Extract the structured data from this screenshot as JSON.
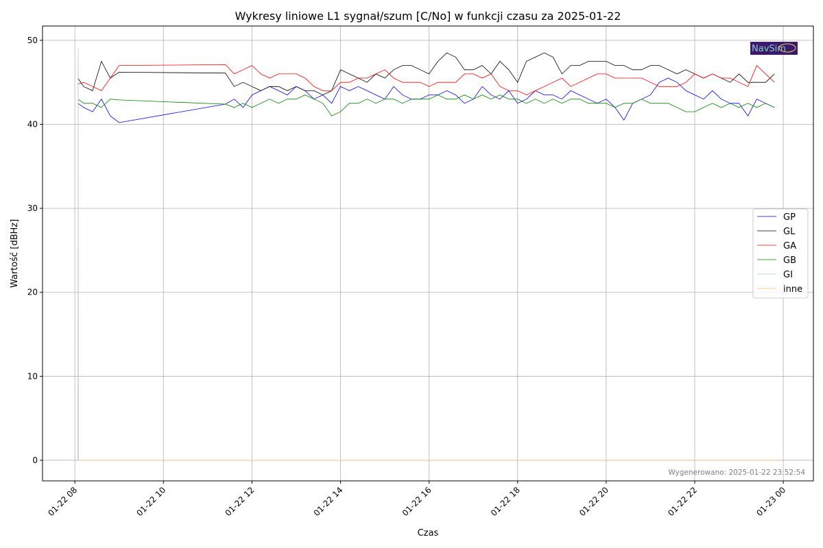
{
  "chart_data": {
    "type": "line",
    "title": "Wykresy liniowe L1 sygnał/szum [C/No] w funkcji czasu za 2025-01-22",
    "xlabel": "Czas",
    "ylabel": "Wartość [dBHz]",
    "x_unit": "hours since 2025-01-22 00:00",
    "xlim": [
      7.27,
      24.68
    ],
    "ylim": [
      -2.45,
      51.7
    ],
    "grid": true,
    "legend_placement": "center-right",
    "x_ticks": [
      8,
      10,
      12,
      14,
      16,
      18,
      20,
      22,
      24
    ],
    "x_tick_labels": [
      "01-22 08",
      "01-22 10",
      "01-22 12",
      "01-22 14",
      "01-22 16",
      "01-22 18",
      "01-22 20",
      "01-22 22",
      "01-23 00"
    ],
    "y_ticks": [
      0,
      10,
      20,
      30,
      40,
      50
    ],
    "y_tick_labels": [
      "0",
      "10",
      "20",
      "30",
      "40",
      "50"
    ],
    "x": [
      8.07,
      8.2,
      8.4,
      8.6,
      8.8,
      9.0,
      11.4,
      11.6,
      11.8,
      12.0,
      12.2,
      12.4,
      12.6,
      12.8,
      13.0,
      13.2,
      13.4,
      13.6,
      13.8,
      14.0,
      14.2,
      14.4,
      14.6,
      14.8,
      15.0,
      15.2,
      15.4,
      15.6,
      15.8,
      16.0,
      16.2,
      16.4,
      16.6,
      16.8,
      17.0,
      17.2,
      17.4,
      17.6,
      17.8,
      18.0,
      18.2,
      18.4,
      18.6,
      18.8,
      19.0,
      19.2,
      19.4,
      19.6,
      19.8,
      20.0,
      20.2,
      20.4,
      20.6,
      20.8,
      21.0,
      21.2,
      21.4,
      21.6,
      21.8,
      22.0,
      22.2,
      22.4,
      22.6,
      22.8,
      23.0,
      23.2,
      23.4,
      23.6,
      23.8
    ],
    "series": [
      {
        "name": "GP",
        "color": "#0000ff",
        "values": [
          42.5,
          42,
          41.5,
          43,
          41,
          40.2,
          42.4,
          43,
          42,
          43.5,
          44,
          44.5,
          44,
          43.5,
          44.5,
          44,
          43,
          43.5,
          42.5,
          44.5,
          44,
          44.5,
          44,
          43.5,
          43,
          44.5,
          43.5,
          43,
          43,
          43.5,
          43.5,
          44,
          43.5,
          42.5,
          43,
          44.5,
          43.5,
          43,
          44,
          42.5,
          43,
          44,
          43.5,
          43.5,
          43,
          44,
          43.5,
          43,
          42.5,
          43,
          42,
          40.5,
          42.5,
          43,
          43.5,
          45,
          45.5,
          45,
          44,
          43.5,
          43,
          44,
          43,
          42.5,
          42.5,
          41,
          43,
          42.5,
          42
        ]
      },
      {
        "name": "GL",
        "color": "#000000",
        "values": [
          45.5,
          44.5,
          44,
          47.5,
          45.5,
          46.2,
          46.1,
          44.5,
          45,
          44.5,
          44,
          44.5,
          44.5,
          44,
          44.5,
          44,
          44,
          43.5,
          44,
          46.5,
          46,
          45.5,
          45,
          46,
          45.5,
          46.5,
          47,
          47,
          46.5,
          46,
          47.5,
          48.5,
          48,
          46.5,
          46.5,
          47,
          46,
          47.5,
          46.5,
          45,
          47.5,
          48,
          48.5,
          48,
          46,
          47,
          47,
          47.5,
          47.5,
          47.5,
          47,
          47,
          46.5,
          46.5,
          47,
          47,
          46.5,
          46,
          46.5,
          46,
          45.5,
          46,
          45.5,
          45,
          46,
          45,
          45,
          45,
          46
        ]
      },
      {
        "name": "GA",
        "color": "#ff0000",
        "values": [
          44.8,
          45,
          44.5,
          44,
          45.5,
          47,
          47.1,
          46,
          46.5,
          47,
          46,
          45.5,
          46,
          46,
          46,
          45.5,
          44.5,
          44,
          44,
          45,
          45,
          45.5,
          45.5,
          46,
          46.5,
          45.5,
          45,
          45,
          45,
          44.5,
          45,
          45,
          45,
          46,
          46,
          45.5,
          46,
          44.5,
          44,
          44,
          43.5,
          44,
          44.5,
          45,
          45.5,
          44.5,
          45,
          45.5,
          46,
          46,
          45.5,
          45.5,
          45.5,
          45.5,
          45,
          44.5,
          44.5,
          44.5,
          45,
          46,
          45.5,
          46,
          45.5,
          45.5,
          45,
          44.5,
          47,
          46,
          45
        ]
      },
      {
        "name": "GB",
        "color": "#008000",
        "values": [
          43,
          42.5,
          42.5,
          42,
          43,
          42.9,
          42.4,
          42,
          42.5,
          42,
          42.5,
          43,
          42.5,
          43,
          43,
          43.5,
          43,
          42.5,
          41,
          41.5,
          42.5,
          42.5,
          43,
          42.5,
          43,
          43,
          42.5,
          43,
          43,
          43,
          43.5,
          43,
          43,
          43.5,
          43,
          43.5,
          43,
          43.5,
          43,
          43,
          42.5,
          43,
          42.5,
          43,
          42.5,
          43,
          43,
          42.5,
          42.5,
          42.5,
          42,
          42.5,
          42.5,
          43,
          42.5,
          42.5,
          42.5,
          42,
          41.5,
          41.5,
          42,
          42.5,
          42,
          42.5,
          42,
          42.5,
          42,
          42.5,
          42
        ]
      },
      {
        "name": "GI",
        "color": "#aec7e8",
        "points": [
          [
            8.07,
            0
          ],
          [
            8.075,
            49
          ],
          [
            8.08,
            0
          ],
          [
            23.85,
            0
          ]
        ]
      },
      {
        "name": "inne",
        "color": "#ffbb78",
        "points": [
          [
            8.07,
            0
          ],
          [
            23.85,
            0
          ]
        ]
      }
    ],
    "annotations": [
      "Wygenerowano: 2025-01-22 23:52:54"
    ],
    "logo_text": "NavSim"
  }
}
